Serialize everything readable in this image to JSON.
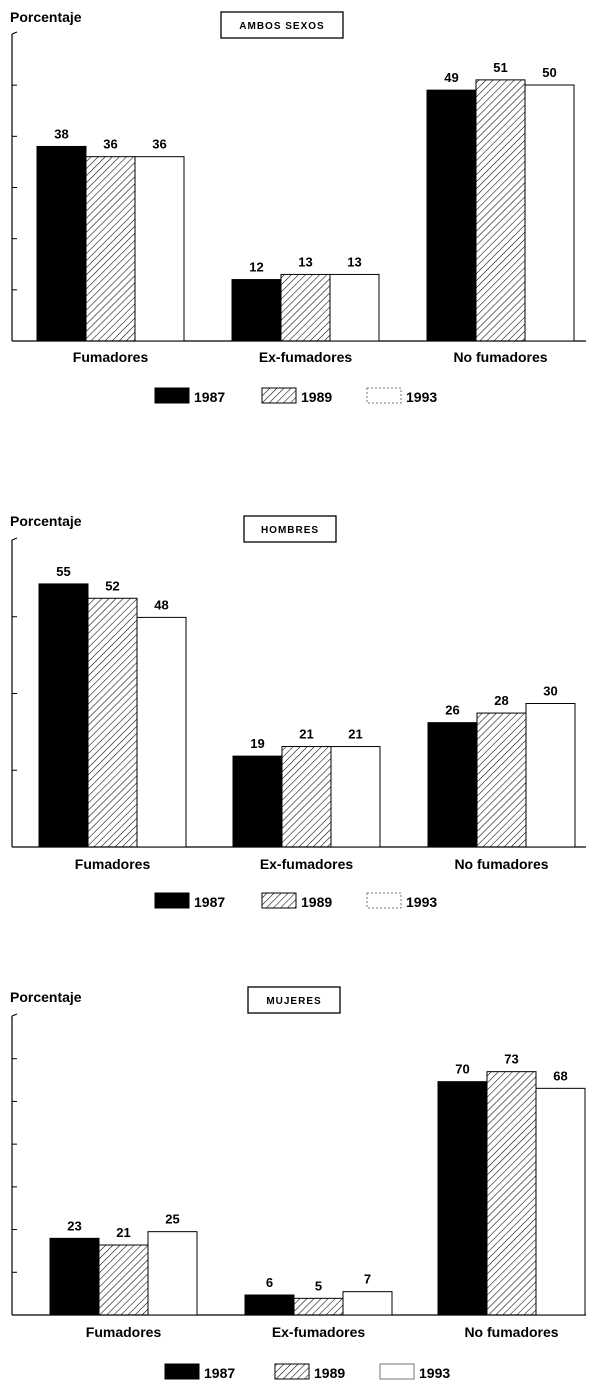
{
  "colors": {
    "ink": "#000000",
    "paper": "#ffffff"
  },
  "chart_data": [
    {
      "type": "bar",
      "title": "AMBOS SEXOS",
      "ylabel": "Porcentaje",
      "xlabel": "",
      "ylim": [
        0,
        50
      ],
      "grid": false,
      "legend_position": "bottom",
      "categories": [
        "Fumadores",
        "Ex-fumadores",
        "No fumadores"
      ],
      "series": [
        {
          "name": "1987",
          "fill": "solid-black",
          "values": [
            38,
            12,
            49
          ]
        },
        {
          "name": "1989",
          "fill": "hatched",
          "values": [
            36,
            13,
            51
          ]
        },
        {
          "name": "1993",
          "fill": "white",
          "values": [
            36,
            13,
            50
          ]
        }
      ]
    },
    {
      "type": "bar",
      "title": "HOMBRES",
      "ylabel": "Porcentaje",
      "xlabel": "",
      "ylim": [
        0,
        60
      ],
      "grid": false,
      "legend_position": "bottom",
      "categories": [
        "Fumadores",
        "Ex-fumadores",
        "No fumadores"
      ],
      "series": [
        {
          "name": "1987",
          "fill": "solid-black",
          "values": [
            55,
            19,
            26
          ]
        },
        {
          "name": "1989",
          "fill": "hatched",
          "values": [
            52,
            21,
            28
          ]
        },
        {
          "name": "1993",
          "fill": "white",
          "values": [
            48,
            21,
            30
          ]
        }
      ]
    },
    {
      "type": "bar",
      "title": "MUJERES",
      "ylabel": "Porcentaje",
      "xlabel": "",
      "ylim": [
        0,
        90
      ],
      "grid": false,
      "legend_position": "bottom",
      "categories": [
        "Fumadores",
        "Ex-fumadores",
        "No fumadores"
      ],
      "series": [
        {
          "name": "1987",
          "fill": "solid-black",
          "values": [
            23,
            6,
            70
          ]
        },
        {
          "name": "1989",
          "fill": "hatched",
          "values": [
            21,
            5,
            73
          ]
        },
        {
          "name": "1993",
          "fill": "white",
          "values": [
            25,
            7,
            68
          ]
        }
      ]
    }
  ]
}
